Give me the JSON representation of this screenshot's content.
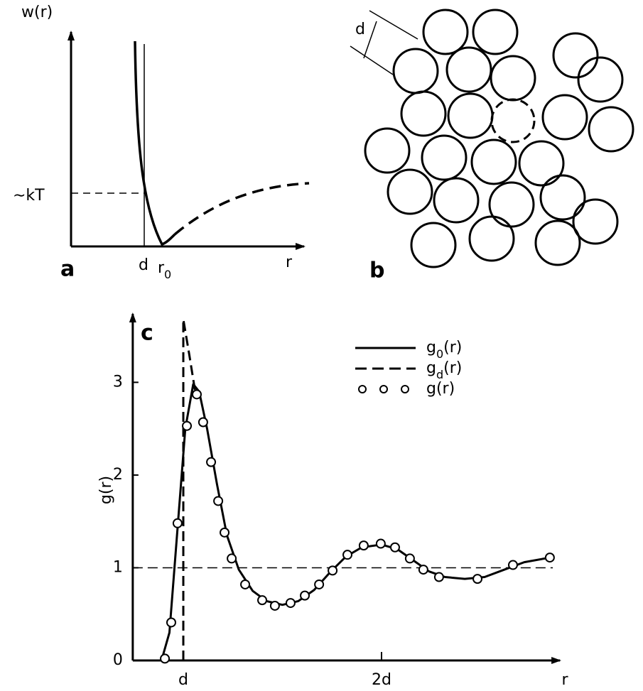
{
  "panels": {
    "a": {
      "label": "a",
      "y_label": "w(r)",
      "x_label": "r",
      "level_label": "∼kT",
      "d_label": "d",
      "r0_label": "r_0"
    },
    "b": {
      "label": "b",
      "d_label": "d"
    }
  },
  "chart_data": {
    "type": "line",
    "title": "c",
    "y_label": "g(r)",
    "x_label": "r",
    "xlim": [
      0.745,
      2.9
    ],
    "ylim": [
      0,
      3.7
    ],
    "xticks": [
      {
        "value": 1,
        "label": "d"
      },
      {
        "value": 2,
        "label": "2d"
      }
    ],
    "yticks": [
      0,
      1,
      2,
      3
    ],
    "hline": 1,
    "series": [
      {
        "name": "g_0(r)",
        "color": "#000",
        "style": "solid",
        "x": [
          0.89,
          0.93,
          0.97,
          1.01,
          1.05,
          1.08,
          1.12,
          1.17,
          1.22,
          1.28,
          1.35,
          1.42,
          1.5,
          1.58,
          1.66,
          1.74,
          1.82,
          1.9,
          2.0,
          2.08,
          2.16,
          2.24,
          2.32,
          2.42,
          2.52,
          2.62,
          2.72,
          2.85
        ],
        "values": [
          0,
          0.3,
          1.4,
          2.5,
          2.98,
          2.9,
          2.5,
          1.9,
          1.35,
          0.98,
          0.75,
          0.64,
          0.6,
          0.64,
          0.76,
          0.95,
          1.12,
          1.22,
          1.25,
          1.2,
          1.08,
          0.96,
          0.9,
          0.88,
          0.9,
          0.98,
          1.06,
          1.11
        ]
      },
      {
        "name": "g_d(r)",
        "color": "#000",
        "style": "dashed",
        "x": [
          1,
          1,
          1.03,
          1.06
        ],
        "values": [
          0,
          3.68,
          3.3,
          2.9
        ]
      },
      {
        "name": "g(r)",
        "color": "#000",
        "style": "markers",
        "x": [
          0.907,
          0.939,
          0.971,
          1.018,
          1.068,
          1.1,
          1.14,
          1.176,
          1.208,
          1.244,
          1.312,
          1.398,
          1.462,
          1.541,
          1.613,
          1.685,
          1.753,
          1.828,
          1.91,
          1.996,
          2.068,
          2.143,
          2.211,
          2.29,
          2.484,
          2.663,
          2.849
        ],
        "values": [
          0.02,
          0.41,
          1.48,
          2.53,
          2.87,
          2.57,
          2.14,
          1.72,
          1.38,
          1.1,
          0.82,
          0.65,
          0.59,
          0.62,
          0.7,
          0.82,
          0.97,
          1.14,
          1.24,
          1.26,
          1.22,
          1.1,
          0.98,
          0.9,
          0.88,
          1.03,
          1.11
        ]
      }
    ]
  }
}
